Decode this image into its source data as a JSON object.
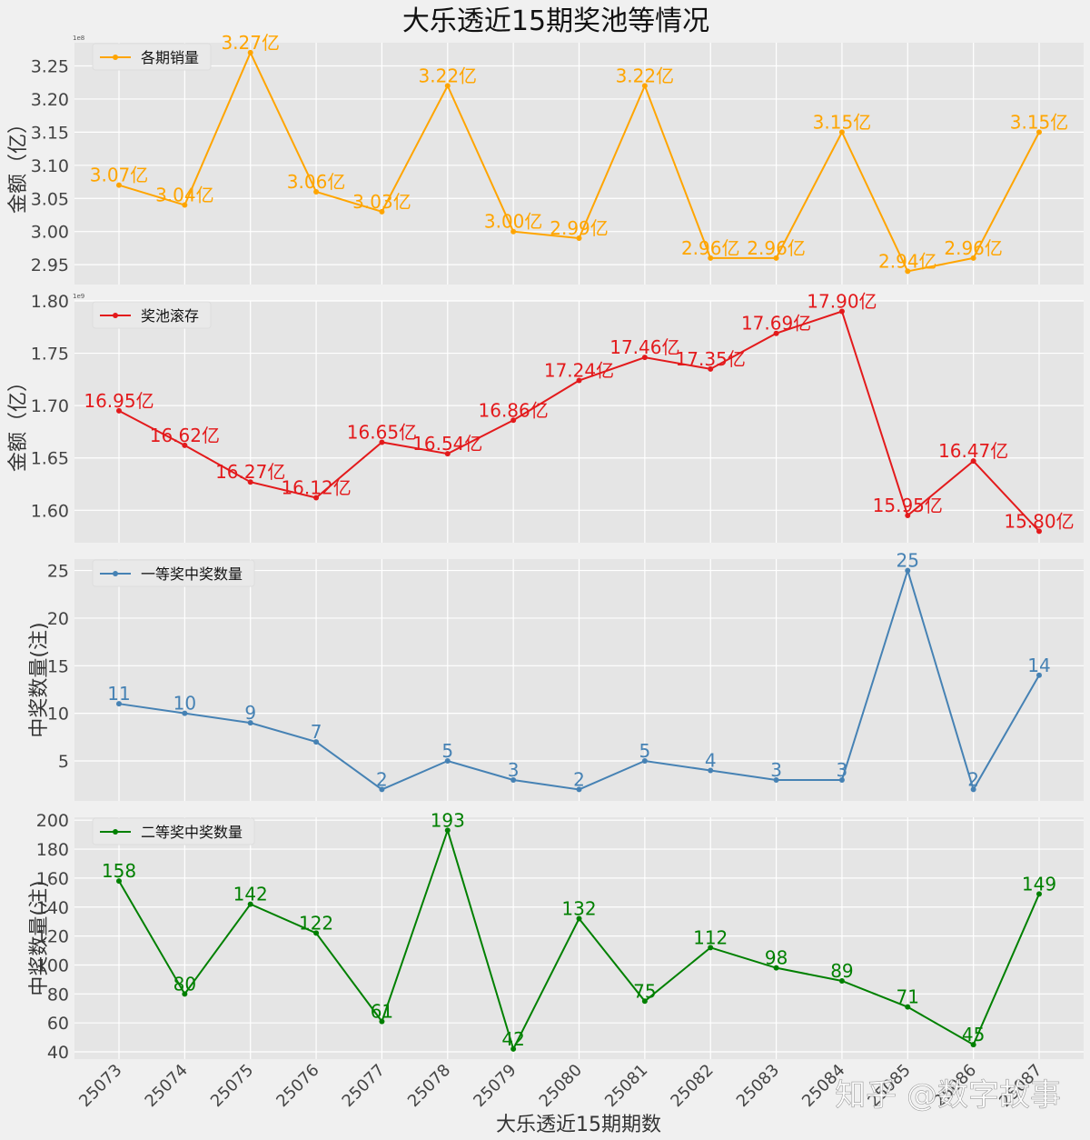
{
  "title": "大乐透近15期奖池等情况",
  "xlabel": "大乐透近15期期数",
  "watermark": "知乎 @数字故事",
  "colors": {
    "background": "#f0f0f0",
    "plot_bg": "#e5e5e5",
    "grid": "#ffffff",
    "sales": "#ffa500",
    "pool": "#e31a1c",
    "first": "#4682b4",
    "second": "#008000"
  },
  "chart_data": [
    {
      "type": "line",
      "name": "sales",
      "legend": "各期销量",
      "ylabel": "金额（亿）",
      "offset_text": "1e8",
      "ylim": [
        2.92,
        3.285
      ],
      "yticks": [
        2.95,
        3.0,
        3.05,
        3.1,
        3.15,
        3.2,
        3.25
      ],
      "ytick_labels": [
        "2.95",
        "3.00",
        "3.05",
        "3.10",
        "3.15",
        "3.20",
        "3.25"
      ],
      "categories": [
        "25073",
        "25074",
        "25075",
        "25076",
        "25077",
        "25078",
        "25079",
        "25080",
        "25081",
        "25082",
        "25083",
        "25084",
        "25085",
        "25086",
        "25087"
      ],
      "values": [
        3.07,
        3.04,
        3.27,
        3.06,
        3.03,
        3.22,
        3.0,
        2.99,
        3.22,
        2.96,
        2.96,
        3.15,
        2.94,
        2.96,
        3.15
      ],
      "labels": [
        "3.07亿",
        "3.04亿",
        "3.27亿",
        "3.06亿",
        "3.03亿",
        "3.22亿",
        "3.00亿",
        "2.99亿",
        "3.22亿",
        "2.96亿",
        "2.96亿",
        "3.15亿",
        "2.94亿",
        "2.96亿",
        "3.15亿"
      ]
    },
    {
      "type": "line",
      "name": "pool",
      "legend": "奖池滚存",
      "ylabel": "金额（亿）",
      "offset_text": "1e9",
      "ylim": [
        1.569,
        1.8
      ],
      "yticks": [
        1.6,
        1.65,
        1.7,
        1.75,
        1.8
      ],
      "ytick_labels": [
        "1.60",
        "1.65",
        "1.70",
        "1.75",
        "1.80"
      ],
      "categories": [
        "25073",
        "25074",
        "25075",
        "25076",
        "25077",
        "25078",
        "25079",
        "25080",
        "25081",
        "25082",
        "25083",
        "25084",
        "25085",
        "25086",
        "25087"
      ],
      "values": [
        16.95,
        16.62,
        16.27,
        16.12,
        16.65,
        16.54,
        16.86,
        17.24,
        17.46,
        17.35,
        17.69,
        17.9,
        15.95,
        16.47,
        15.8
      ],
      "labels": [
        "16.95亿",
        "16.62亿",
        "16.27亿",
        "16.12亿",
        "16.65亿",
        "16.54亿",
        "16.86亿",
        "17.24亿",
        "17.46亿",
        "17.35亿",
        "17.69亿",
        "17.90亿",
        "15.95亿",
        "16.47亿",
        "15.80亿"
      ]
    },
    {
      "type": "line",
      "name": "first",
      "legend": "一等奖中奖数量",
      "ylabel": "中奖数量(注)",
      "ylim": [
        0.8,
        26.2
      ],
      "yticks": [
        5,
        10,
        15,
        20,
        25
      ],
      "ytick_labels": [
        "5",
        "10",
        "15",
        "20",
        "25"
      ],
      "categories": [
        "25073",
        "25074",
        "25075",
        "25076",
        "25077",
        "25078",
        "25079",
        "25080",
        "25081",
        "25082",
        "25083",
        "25084",
        "25085",
        "25086",
        "25087"
      ],
      "values": [
        11,
        10,
        9,
        7,
        2,
        5,
        3,
        2,
        5,
        4,
        3,
        3,
        25,
        2,
        14
      ],
      "labels": [
        "11",
        "10",
        "9",
        "7",
        "2",
        "5",
        "3",
        "2",
        "5",
        "4",
        "3",
        "3",
        "25",
        "2",
        "14"
      ]
    },
    {
      "type": "line",
      "name": "second",
      "legend": "二等奖中奖数量",
      "ylabel": "中奖数量(注)",
      "ylim": [
        35,
        202
      ],
      "yticks": [
        40,
        60,
        80,
        100,
        120,
        140,
        160,
        180,
        200
      ],
      "ytick_labels": [
        "40",
        "60",
        "80",
        "100",
        "120",
        "140",
        "160",
        "180",
        "200"
      ],
      "categories": [
        "25073",
        "25074",
        "25075",
        "25076",
        "25077",
        "25078",
        "25079",
        "25080",
        "25081",
        "25082",
        "25083",
        "25084",
        "25085",
        "25086",
        "25087"
      ],
      "values": [
        158,
        80,
        142,
        122,
        61,
        193,
        42,
        132,
        75,
        112,
        98,
        89,
        71,
        45,
        149
      ],
      "labels": [
        "158",
        "80",
        "142",
        "122",
        "61",
        "193",
        "42",
        "132",
        "75",
        "112",
        "98",
        "89",
        "71",
        "45",
        "149"
      ]
    }
  ]
}
